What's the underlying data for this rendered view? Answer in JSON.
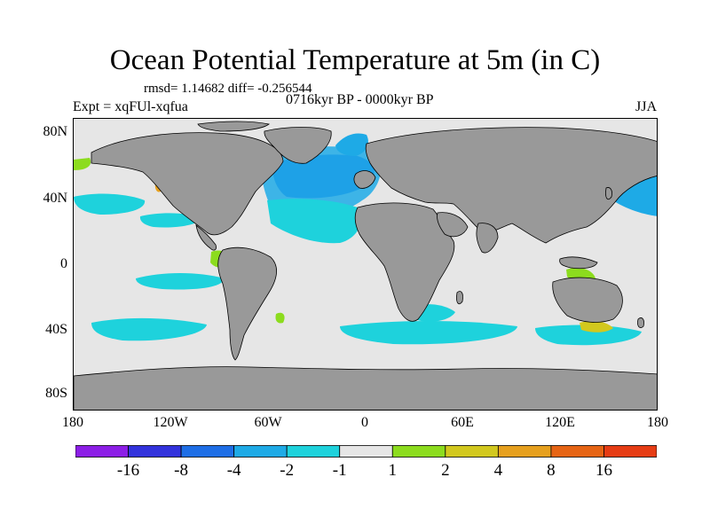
{
  "title": "Ocean Potential Temperature at 5m (in C)",
  "stats": "rmsd= 1.14682 diff= -0.256544",
  "experiment": "Expt = xqFUl-xqfua",
  "period": "0716kyr BP - 0000kyr BP",
  "season": "JJA",
  "map": {
    "lat_labels": [
      "80N",
      "40N",
      "0",
      "40S",
      "80S"
    ],
    "lon_labels": [
      "180",
      "120W",
      "60W",
      "0",
      "60E",
      "120E",
      "180"
    ],
    "colors": {
      "land": "#999999",
      "ocean_neutral": "#e6e6e6",
      "coast": "#000000"
    }
  },
  "colorbar": {
    "labels": [
      "-16",
      "-8",
      "-4",
      "-2",
      "-1",
      "1",
      "2",
      "4",
      "8",
      "16"
    ],
    "colors": [
      "#8c1ee6",
      "#3232dc",
      "#1e6ee6",
      "#1eaae6",
      "#1ed2dc",
      "#e6e6e6",
      "#8cdc1e",
      "#d2c81e",
      "#e6a01e",
      "#e66414",
      "#e63c14"
    ]
  }
}
